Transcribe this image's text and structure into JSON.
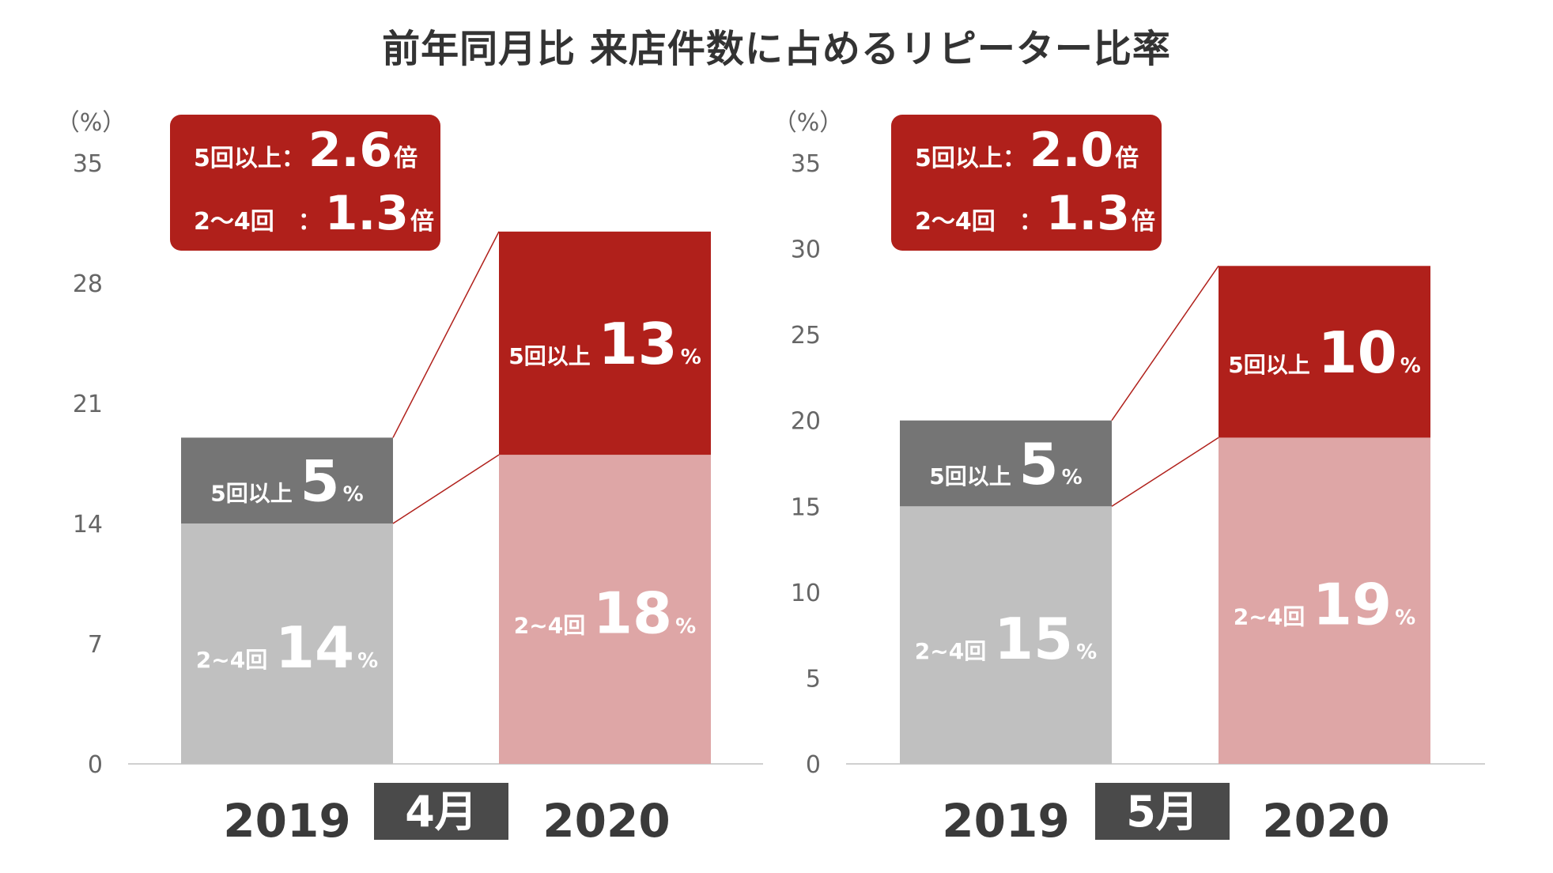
{
  "title": "前年同月比 来店件数に占めるリピーター比率",
  "colors": {
    "grey_dark": "#757575",
    "grey_light": "#c0c0c0",
    "red_dark": "#b0201b",
    "red_light": "#dea6a6",
    "connector": "#b0201b",
    "month_badge": "#4a4a4a",
    "callout": "#b0201b",
    "axis_line": "#d0d0d0"
  },
  "chart_data": [
    {
      "type": "bar",
      "stacked": true,
      "month": "4月",
      "unit": "（%）",
      "categories": [
        "2019",
        "2020"
      ],
      "yticks": [
        "0",
        "7",
        "14",
        "21",
        "28",
        "35"
      ],
      "ylim": [
        0,
        35
      ],
      "grid": false,
      "series": [
        {
          "name": "2~4回",
          "values": [
            14,
            18
          ],
          "labels": [
            "14",
            "18"
          ]
        },
        {
          "name": "5回以上",
          "values": [
            5,
            13
          ],
          "labels": [
            "5",
            "13"
          ]
        }
      ],
      "pct_suffix": "%",
      "callout": {
        "lines": [
          {
            "label": "5回以上：",
            "value": "2.6",
            "suffix": "倍"
          },
          {
            "label": "2～4回　：",
            "value": "1.3",
            "suffix": "倍"
          }
        ]
      }
    },
    {
      "type": "bar",
      "stacked": true,
      "month": "5月",
      "unit": "（%）",
      "categories": [
        "2019",
        "2020"
      ],
      "yticks": [
        "0",
        "5",
        "10",
        "15",
        "20",
        "25",
        "30",
        "35"
      ],
      "ylim": [
        0,
        35
      ],
      "grid": false,
      "series": [
        {
          "name": "2~4回",
          "values": [
            15,
            19
          ],
          "labels": [
            "15",
            "19"
          ]
        },
        {
          "name": "5回以上",
          "values": [
            5,
            10
          ],
          "labels": [
            "5",
            "10"
          ]
        }
      ],
      "pct_suffix": "%",
      "callout": {
        "lines": [
          {
            "label": "5回以上：",
            "value": "2.0",
            "suffix": "倍"
          },
          {
            "label": "2～4回　：",
            "value": "1.3",
            "suffix": "倍"
          }
        ]
      }
    }
  ]
}
